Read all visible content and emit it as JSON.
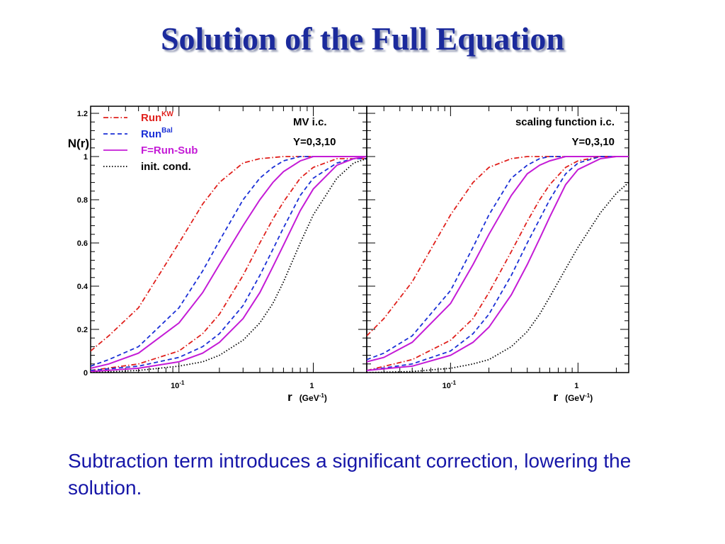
{
  "slide": {
    "title": "Solution of the Full Equation",
    "caption": "Subtraction term introduces a significant correction, lowering the solution."
  },
  "colors": {
    "title": "#1b2a9c",
    "caption": "#1616a8",
    "run_kw": "#e0201c",
    "run_bal": "#1a2fd6",
    "f_run_sub": "#c41bd6",
    "init_cond": "#000000"
  },
  "chart_data": [
    {
      "type": "line",
      "panel": "left",
      "ylabel": "N(r)",
      "xlabel": "r",
      "xunit": "(GeV-1)",
      "x_scale": "log",
      "xlim": [
        0.022,
        2.5
      ],
      "ylim": [
        0,
        1.2
      ],
      "x_tick_labels": [
        {
          "value": 0.1,
          "base": "10",
          "exp": "-1"
        },
        {
          "value": 1,
          "base": "1",
          "exp": ""
        }
      ],
      "y_ticks": [
        0,
        0.2,
        0.4,
        0.6,
        0.8,
        1,
        1.2
      ],
      "y_tick_labels": [
        "0",
        "0.2",
        "0.4",
        "0.6",
        "0.8",
        "1",
        "1.2"
      ],
      "legend": {
        "placement": "top-left",
        "entries": [
          {
            "label": "Run",
            "sup": "KW",
            "style": "dashdot",
            "color": "#e0201c",
            "text_color": "#e0201c"
          },
          {
            "label": "Run",
            "sup": "Bal",
            "style": "dashed",
            "color": "#1a2fd6",
            "text_color": "#1a2fd6"
          },
          {
            "label": "F=Run-Sub",
            "sup": "",
            "style": "solid",
            "color": "#c41bd6",
            "text_color": "#c41bd6"
          },
          {
            "label": "init. cond.",
            "sup": "",
            "style": "dotted",
            "color": "#000000",
            "text_color": "#000000"
          }
        ]
      },
      "annotations": [
        "MV i.c.",
        "Y=0,3,10"
      ],
      "annotation_align": "left",
      "series": [
        {
          "style": "dashdot",
          "color": "#e0201c",
          "x": [
            0.022,
            0.03,
            0.05,
            0.1,
            0.15,
            0.2,
            0.3,
            0.4,
            0.6
          ],
          "y": [
            0.1,
            0.17,
            0.3,
            0.6,
            0.78,
            0.88,
            0.97,
            0.99,
            1.0
          ]
        },
        {
          "style": "dashed",
          "color": "#1a2fd6",
          "x": [
            0.022,
            0.03,
            0.05,
            0.1,
            0.15,
            0.2,
            0.3,
            0.4,
            0.5,
            0.6,
            0.8
          ],
          "y": [
            0.03,
            0.06,
            0.12,
            0.3,
            0.47,
            0.61,
            0.8,
            0.9,
            0.95,
            0.98,
            1.0
          ]
        },
        {
          "style": "solid",
          "color": "#c41bd6",
          "x": [
            0.022,
            0.03,
            0.05,
            0.1,
            0.15,
            0.2,
            0.3,
            0.4,
            0.5,
            0.6,
            0.8,
            1.0
          ],
          "y": [
            0.02,
            0.04,
            0.09,
            0.23,
            0.37,
            0.5,
            0.68,
            0.8,
            0.88,
            0.93,
            0.98,
            1.0
          ]
        },
        {
          "style": "dashdot",
          "color": "#e0201c",
          "x": [
            0.022,
            0.05,
            0.1,
            0.15,
            0.2,
            0.3,
            0.4,
            0.5,
            0.6,
            0.8,
            1.0,
            1.5
          ],
          "y": [
            0.01,
            0.04,
            0.1,
            0.18,
            0.27,
            0.45,
            0.6,
            0.71,
            0.79,
            0.9,
            0.95,
            0.99
          ]
        },
        {
          "style": "dashed",
          "color": "#1a2fd6",
          "x": [
            0.022,
            0.05,
            0.1,
            0.15,
            0.2,
            0.3,
            0.4,
            0.5,
            0.6,
            0.8,
            1.0,
            1.5,
            2.0
          ],
          "y": [
            0.01,
            0.03,
            0.07,
            0.12,
            0.18,
            0.31,
            0.45,
            0.57,
            0.67,
            0.82,
            0.9,
            0.97,
            0.99
          ]
        },
        {
          "style": "solid",
          "color": "#c41bd6",
          "x": [
            0.022,
            0.05,
            0.1,
            0.15,
            0.2,
            0.3,
            0.4,
            0.5,
            0.6,
            0.8,
            1.0,
            1.5,
            2.0,
            2.5
          ],
          "y": [
            0.005,
            0.02,
            0.05,
            0.09,
            0.14,
            0.25,
            0.37,
            0.49,
            0.59,
            0.75,
            0.85,
            0.96,
            0.99,
            1.0
          ]
        },
        {
          "style": "dotted",
          "color": "#000000",
          "x": [
            0.022,
            0.05,
            0.1,
            0.15,
            0.2,
            0.3,
            0.4,
            0.5,
            0.6,
            0.8,
            1.0,
            1.5,
            2.0,
            2.5
          ],
          "y": [
            0.0,
            0.01,
            0.03,
            0.05,
            0.08,
            0.15,
            0.23,
            0.32,
            0.42,
            0.6,
            0.73,
            0.9,
            0.97,
            0.99
          ]
        }
      ]
    },
    {
      "type": "line",
      "panel": "right",
      "xlabel": "r",
      "xunit": "(GeV-1)",
      "x_scale": "log",
      "xlim": [
        0.022,
        2.5
      ],
      "ylim": [
        0,
        1.2
      ],
      "x_tick_labels": [
        {
          "value": 0.1,
          "base": "10",
          "exp": "-1"
        },
        {
          "value": 1,
          "base": "1",
          "exp": ""
        }
      ],
      "y_ticks": [
        0,
        0.2,
        0.4,
        0.6,
        0.8,
        1,
        1.2
      ],
      "y_tick_labels": [],
      "annotations": [
        "scaling function i.c.",
        "Y=0,3,10"
      ],
      "annotation_align": "right",
      "series": [
        {
          "style": "dashdot",
          "color": "#e0201c",
          "x": [
            0.022,
            0.03,
            0.05,
            0.08,
            0.1,
            0.15,
            0.2,
            0.3,
            0.4,
            0.6
          ],
          "y": [
            0.17,
            0.25,
            0.42,
            0.63,
            0.73,
            0.88,
            0.95,
            0.99,
            1.0,
            1.0
          ]
        },
        {
          "style": "dashed",
          "color": "#1a2fd6",
          "x": [
            0.022,
            0.03,
            0.05,
            0.1,
            0.15,
            0.2,
            0.3,
            0.4,
            0.5,
            0.6,
            0.8
          ],
          "y": [
            0.06,
            0.09,
            0.17,
            0.38,
            0.58,
            0.73,
            0.9,
            0.96,
            0.99,
            1.0,
            1.0
          ]
        },
        {
          "style": "solid",
          "color": "#c41bd6",
          "x": [
            0.022,
            0.03,
            0.05,
            0.1,
            0.15,
            0.2,
            0.3,
            0.4,
            0.5,
            0.6,
            0.8,
            1.0
          ],
          "y": [
            0.05,
            0.07,
            0.14,
            0.32,
            0.5,
            0.64,
            0.82,
            0.92,
            0.96,
            0.98,
            1.0,
            1.0
          ]
        },
        {
          "style": "dashdot",
          "color": "#e0201c",
          "x": [
            0.022,
            0.05,
            0.1,
            0.15,
            0.2,
            0.3,
            0.4,
            0.5,
            0.6,
            0.8,
            1.0,
            1.5
          ],
          "y": [
            0.01,
            0.06,
            0.15,
            0.25,
            0.37,
            0.56,
            0.7,
            0.8,
            0.87,
            0.95,
            0.98,
            1.0
          ]
        },
        {
          "style": "dashed",
          "color": "#1a2fd6",
          "x": [
            0.022,
            0.05,
            0.1,
            0.15,
            0.2,
            0.3,
            0.4,
            0.5,
            0.6,
            0.8,
            1.0,
            1.5,
            2.0
          ],
          "y": [
            0.01,
            0.04,
            0.1,
            0.18,
            0.27,
            0.45,
            0.6,
            0.71,
            0.8,
            0.92,
            0.97,
            1.0,
            1.0
          ]
        },
        {
          "style": "solid",
          "color": "#c41bd6",
          "x": [
            0.022,
            0.05,
            0.1,
            0.15,
            0.2,
            0.3,
            0.4,
            0.5,
            0.6,
            0.8,
            1.0,
            1.5,
            2.0,
            2.5
          ],
          "y": [
            0.01,
            0.03,
            0.08,
            0.14,
            0.21,
            0.36,
            0.5,
            0.62,
            0.72,
            0.87,
            0.94,
            0.99,
            1.0,
            1.0
          ]
        },
        {
          "style": "dotted",
          "color": "#000000",
          "x": [
            0.022,
            0.05,
            0.1,
            0.15,
            0.2,
            0.3,
            0.4,
            0.5,
            0.6,
            0.8,
            1.0,
            1.5,
            2.0,
            2.5
          ],
          "y": [
            0.0,
            0.005,
            0.02,
            0.04,
            0.06,
            0.12,
            0.19,
            0.27,
            0.35,
            0.48,
            0.58,
            0.74,
            0.83,
            0.88
          ]
        }
      ]
    }
  ]
}
